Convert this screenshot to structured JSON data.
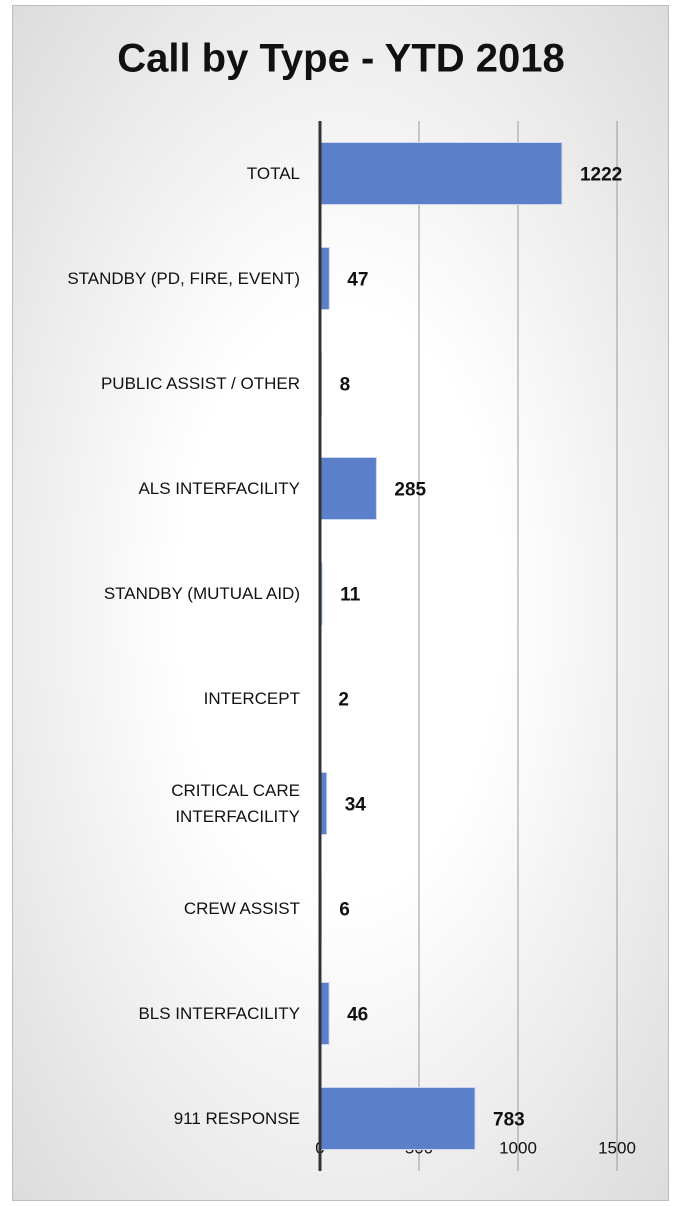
{
  "chart_data": {
    "type": "barh",
    "title": "Call by Type - YTD 2018",
    "categories": [
      "TOTAL",
      "STANDBY (PD, FIRE, EVENT)",
      "PUBLIC ASSIST / OTHER",
      "ALS INTERFACILITY",
      "STANDBY (MUTUAL AID)",
      "INTERCEPT",
      "CRITICAL CARE\nINTERFACILITY",
      "CREW ASSIST",
      "BLS INTERFACILITY",
      "911 RESPONSE"
    ],
    "values": [
      1222,
      47,
      8,
      285,
      11,
      2,
      34,
      6,
      46,
      783
    ],
    "color": "#5b80c9",
    "xlim": [
      0,
      1500
    ],
    "xticks": [
      0,
      500,
      1000,
      1500
    ],
    "grid": true
  }
}
